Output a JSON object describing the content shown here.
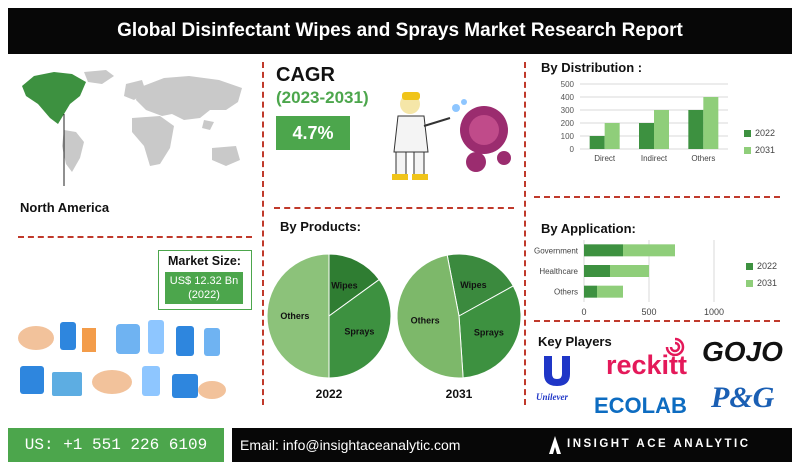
{
  "title": "Global Disinfectant Wipes and Sprays Market Research Report",
  "region": {
    "label": "North America"
  },
  "cagr": {
    "label": "CAGR",
    "years": "(2023-2031)",
    "value": "4.7%"
  },
  "market_size": {
    "label": "Market Size:",
    "value_line1": "US$ 12.32 Bn",
    "value_line2": "(2022)"
  },
  "sections": {
    "products": "By Products:",
    "distribution": "By Distribution :",
    "application": "By Application:",
    "key_players": "Key Players"
  },
  "key_players": [
    "Unilever",
    "reckitt",
    "GOJO",
    "ECOLAB",
    "P&G"
  ],
  "colors": {
    "dark_green": "#3d9140",
    "light_green": "#8fce7a",
    "accent": "#4ca64c",
    "divider": "#c0392b"
  },
  "footer": {
    "phone": "US: +1 551 226 6109",
    "email": "Email: info@insightaceanalytic.com",
    "company": "INSIGHT ACE ANALYTIC"
  },
  "chart_data": [
    {
      "type": "bar",
      "title": "By Distribution :",
      "categories": [
        "Direct",
        "Indirect",
        "Others"
      ],
      "series": [
        {
          "name": "2022",
          "values": [
            100,
            200,
            300
          ]
        },
        {
          "name": "2031",
          "values": [
            200,
            300,
            400
          ]
        }
      ],
      "ylim": [
        0,
        500
      ],
      "yticks": [
        0,
        100,
        200,
        300,
        400,
        500
      ],
      "grid": true,
      "legend": "right"
    },
    {
      "type": "bar",
      "orientation": "horizontal",
      "stacked": true,
      "title": "By Application:",
      "categories": [
        "Government",
        "Healthcare",
        "Others"
      ],
      "series": [
        {
          "name": "2022",
          "values": [
            300,
            200,
            100
          ]
        },
        {
          "name": "2031",
          "values": [
            400,
            300,
            200
          ]
        }
      ],
      "xlim": [
        0,
        1000
      ],
      "xticks": [
        0,
        500,
        1000
      ],
      "grid": true,
      "legend": "right"
    },
    {
      "type": "pie",
      "title": "By Products:",
      "label": "2022",
      "categories": [
        "Wipes",
        "Sprays",
        "Others"
      ],
      "values": [
        15,
        35,
        50
      ]
    },
    {
      "type": "pie",
      "title": "By Products:",
      "label": "2031",
      "categories": [
        "Wipes",
        "Sprays",
        "Others"
      ],
      "values": [
        20,
        32,
        48
      ]
    }
  ]
}
